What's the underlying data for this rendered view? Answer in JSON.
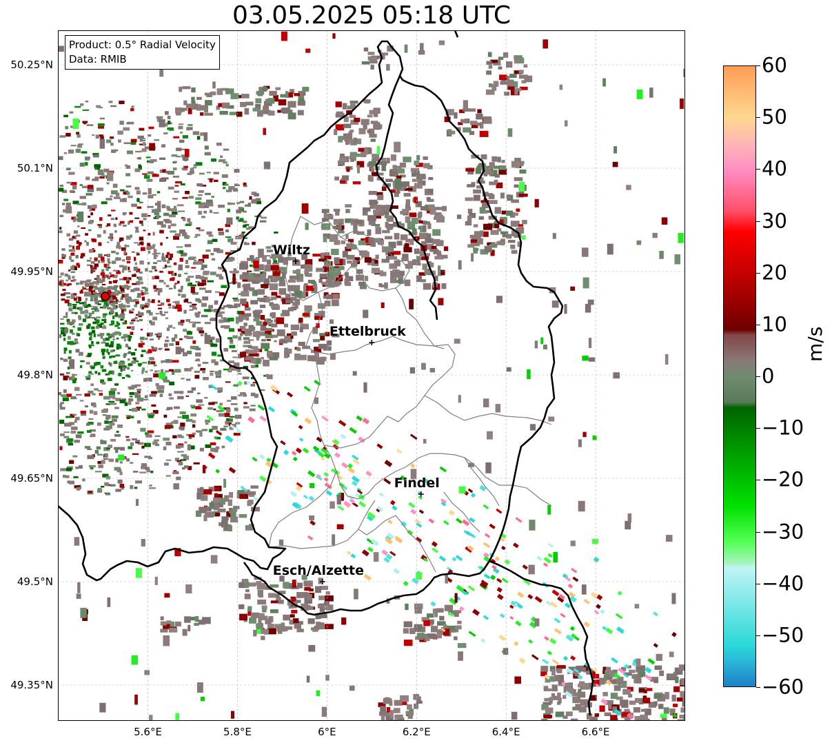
{
  "title": "03.05.2025 05:18 UTC",
  "info": {
    "product": "Product: 0.5° Radial Velocity",
    "data": "Data: RMIB"
  },
  "axes": {
    "lat_ticks": [
      "50.25°N",
      "50.1°N",
      "49.95°N",
      "49.8°N",
      "49.65°N",
      "49.5°N",
      "49.35°N"
    ],
    "lon_ticks": [
      "5.6°E",
      "5.8°E",
      "6°E",
      "6.2°E",
      "6.4°E",
      "6.6°E"
    ],
    "lat_values": [
      50.25,
      50.1,
      49.95,
      49.8,
      49.65,
      49.5,
      49.35
    ],
    "lon_values": [
      5.6,
      5.8,
      6.0,
      6.2,
      6.4,
      6.6
    ]
  },
  "colorbar": {
    "label": "m/s",
    "ticks": [
      "60",
      "50",
      "40",
      "30",
      "20",
      "10",
      "0",
      "−10",
      "−20",
      "−30",
      "−40",
      "−50",
      "−60"
    ],
    "min": -60,
    "max": 60,
    "stops": [
      {
        "v": 60,
        "c": "#ff9c55"
      },
      {
        "v": 50,
        "c": "#ffd790"
      },
      {
        "v": 45,
        "c": "#ffb6b6"
      },
      {
        "v": 40,
        "c": "#ff8fc4"
      },
      {
        "v": 32,
        "c": "#ff4f6b"
      },
      {
        "v": 28,
        "c": "#ff0000"
      },
      {
        "v": 15,
        "c": "#a00000"
      },
      {
        "v": 9,
        "c": "#6e0000"
      },
      {
        "v": 8,
        "c": "#854646"
      },
      {
        "v": 3,
        "c": "#897878"
      },
      {
        "v": 0,
        "c": "#6f8c6f"
      },
      {
        "v": -5,
        "c": "#5a7a5a"
      },
      {
        "v": -6,
        "c": "#006400"
      },
      {
        "v": -25,
        "c": "#00e000"
      },
      {
        "v": -32,
        "c": "#55ff55"
      },
      {
        "v": -36,
        "c": "#a2f5b8"
      },
      {
        "v": -37,
        "c": "#c0f4f4"
      },
      {
        "v": -52,
        "c": "#2ad8d8"
      },
      {
        "v": -55,
        "c": "#2ab8d8"
      },
      {
        "v": -60,
        "c": "#1e80c8"
      }
    ]
  },
  "places": [
    {
      "name": "Wiltz",
      "lon": 5.93,
      "lat": 49.965
    },
    {
      "name": "Ettelbruck",
      "lon": 6.1,
      "lat": 49.847
    },
    {
      "name": "Findel",
      "lon": 6.21,
      "lat": 49.627
    },
    {
      "name": "Esch/Alzette",
      "lon": 5.99,
      "lat": 49.5
    }
  ],
  "radar_site": {
    "lon": 5.505,
    "lat": 49.914
  },
  "colors": {
    "grey_echo": "#887777",
    "green_echo": "#6a8a6a",
    "radar_marker": "#e00000",
    "border": "#000000",
    "canton_lines": "#7f7f7f",
    "grid": "#b0b0b0"
  }
}
